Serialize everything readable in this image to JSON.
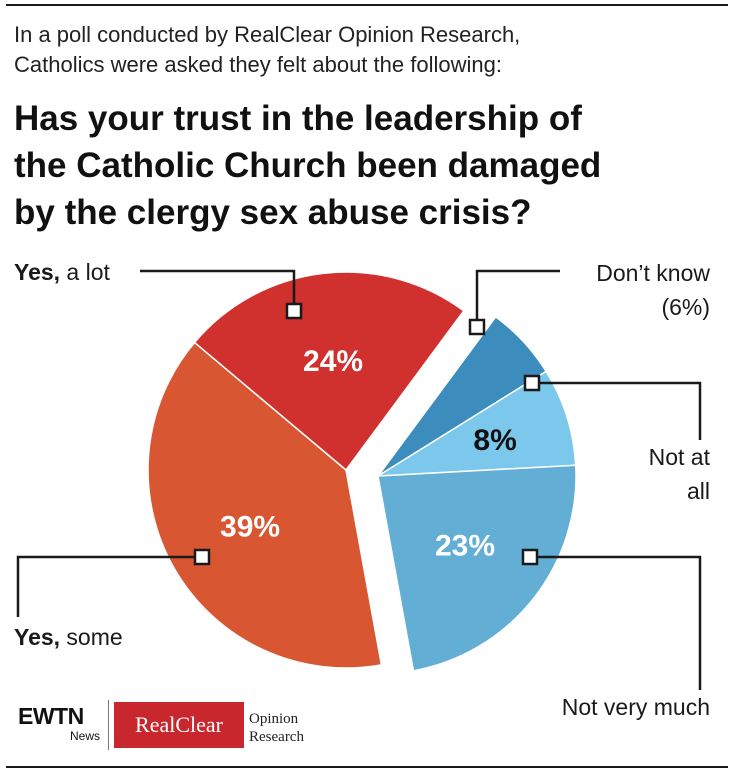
{
  "header": {
    "intro_line1": "In a poll conducted by RealClear Opinion Research,",
    "intro_line2": "Catholics were asked they felt about the following:",
    "title_line1": "Has your trust in the leadership of",
    "title_line2": "the Catholic Church been damaged",
    "title_line3": "by the clergy sex abuse crisis?"
  },
  "chart_data": {
    "type": "pie",
    "title": "Has your trust in the leadership of the Catholic Church been damaged by the clergy sex abuse crisis?",
    "slices": [
      {
        "key": "yes_a_lot",
        "label_bold": "Yes,",
        "label_rest": " a lot",
        "value": 24,
        "value_label": "24%",
        "color": "#d0302e",
        "group": "yes"
      },
      {
        "key": "yes_some",
        "label_bold": "Yes,",
        "label_rest": " some",
        "value": 39,
        "value_label": "39%",
        "color": "#d85632",
        "group": "yes"
      },
      {
        "key": "not_very_much",
        "label": "Not very much",
        "value": 23,
        "value_label": "23%",
        "color": "#63aed4",
        "group": "no"
      },
      {
        "key": "not_at_all",
        "label_line1": "Not at",
        "label_line2": "all",
        "value": 8,
        "value_label": "8%",
        "color": "#7cc8ec",
        "group": "no"
      },
      {
        "key": "dont_know",
        "label_line1": "Don’t know",
        "label_line2": "(6%)",
        "value": 6,
        "color": "#3c8cbd",
        "group": "no"
      }
    ]
  },
  "logos": {
    "ewtn": "EWTN",
    "ewtn_sub": "News",
    "realclear": "RealClear",
    "opinion": "Opinion",
    "research": "Research"
  }
}
